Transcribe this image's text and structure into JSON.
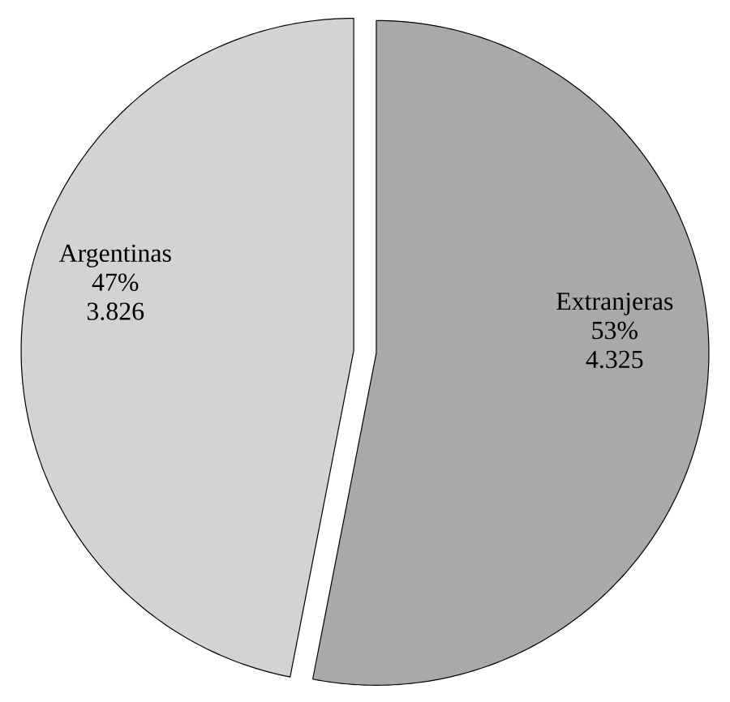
{
  "chart_data": {
    "type": "pie",
    "categories": [
      "Extranjeras",
      "Argentinas"
    ],
    "values": [
      4325,
      3826
    ],
    "value_labels": [
      "4.325",
      "3.826"
    ],
    "colors": [
      "#a9a9a9",
      "#d3d3d3"
    ],
    "annotations": [
      "53%",
      "47%"
    ]
  }
}
